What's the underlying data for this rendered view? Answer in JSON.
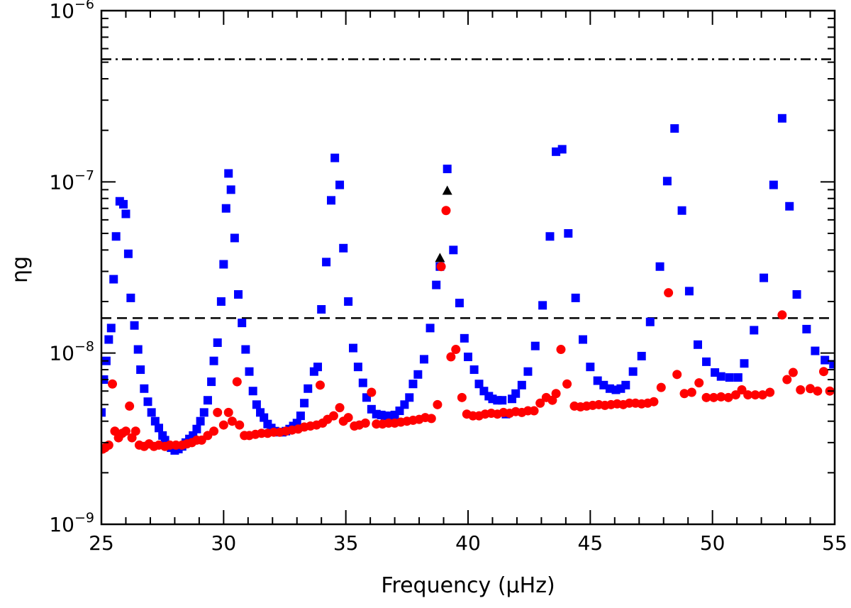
{
  "chart_data": {
    "type": "scatter",
    "title": "",
    "xlabel": "Frequency (μHz)",
    "ylabel": "ηg",
    "xlim": [
      25,
      55
    ],
    "ylim": [
      1e-09,
      1e-06
    ],
    "yscale": "log",
    "x_ticks": [
      {
        "value": 25,
        "label": "25"
      },
      {
        "value": 30,
        "label": "30"
      },
      {
        "value": 35,
        "label": "35"
      },
      {
        "value": 40,
        "label": "40"
      },
      {
        "value": 45,
        "label": "45"
      },
      {
        "value": 50,
        "label": "50"
      },
      {
        "value": 55,
        "label": "55"
      }
    ],
    "y_ticks": [
      {
        "value": 1e-09,
        "base": "10",
        "exp": "−9"
      },
      {
        "value": 1e-08,
        "base": "10",
        "exp": "−8"
      },
      {
        "value": 1e-07,
        "base": "10",
        "exp": "−7"
      },
      {
        "value": 1e-06,
        "base": "10",
        "exp": "−6"
      }
    ],
    "hlines": [
      {
        "name": "dash-dot-threshold",
        "y": 5.2e-07,
        "style": "dashdot",
        "color": "#000000"
      },
      {
        "name": "dashed-threshold",
        "y": 1.6e-08,
        "style": "dashed",
        "color": "#000000"
      }
    ],
    "series": [
      {
        "name": "blue-squares",
        "marker": "square",
        "color": "#0000ff",
        "points": [
          [
            25.0,
            4.5e-09
          ],
          [
            25.1,
            7e-09
          ],
          [
            25.2,
            9e-09
          ],
          [
            25.3,
            1.2e-08
          ],
          [
            25.4,
            1.4e-08
          ],
          [
            25.5,
            2.7e-08
          ],
          [
            25.6,
            4.8e-08
          ],
          [
            25.75,
            7.7e-08
          ],
          [
            25.9,
            7.4e-08
          ],
          [
            26.0,
            6.5e-08
          ],
          [
            26.1,
            3.8e-08
          ],
          [
            26.2,
            2.1e-08
          ],
          [
            26.35,
            1.45e-08
          ],
          [
            26.5,
            1.05e-08
          ],
          [
            26.6,
            8e-09
          ],
          [
            26.75,
            6.2e-09
          ],
          [
            26.9,
            5.2e-09
          ],
          [
            27.05,
            4.5e-09
          ],
          [
            27.2,
            4e-09
          ],
          [
            27.35,
            3.65e-09
          ],
          [
            27.5,
            3.3e-09
          ],
          [
            27.6,
            3.1e-09
          ],
          [
            27.7,
            2.9e-09
          ],
          [
            27.85,
            2.8e-09
          ],
          [
            28.0,
            2.7e-09
          ],
          [
            28.15,
            2.75e-09
          ],
          [
            28.3,
            2.85e-09
          ],
          [
            28.45,
            3e-09
          ],
          [
            28.6,
            3.15e-09
          ],
          [
            28.75,
            3.3e-09
          ],
          [
            28.9,
            3.6e-09
          ],
          [
            29.05,
            4e-09
          ],
          [
            29.2,
            4.5e-09
          ],
          [
            29.35,
            5.3e-09
          ],
          [
            29.5,
            6.8e-09
          ],
          [
            29.6,
            9e-09
          ],
          [
            29.75,
            1.15e-08
          ],
          [
            29.9,
            2e-08
          ],
          [
            30.0,
            3.3e-08
          ],
          [
            30.1,
            7e-08
          ],
          [
            30.2,
            1.12e-07
          ],
          [
            30.3,
            9e-08
          ],
          [
            30.45,
            4.7e-08
          ],
          [
            30.6,
            2.2e-08
          ],
          [
            30.75,
            1.5e-08
          ],
          [
            30.9,
            1.05e-08
          ],
          [
            31.05,
            7.8e-09
          ],
          [
            31.2,
            6e-09
          ],
          [
            31.35,
            5e-09
          ],
          [
            31.5,
            4.5e-09
          ],
          [
            31.65,
            4.2e-09
          ],
          [
            31.8,
            3.85e-09
          ],
          [
            31.95,
            3.65e-09
          ],
          [
            32.1,
            3.5e-09
          ],
          [
            32.25,
            3.45e-09
          ],
          [
            32.4,
            3.45e-09
          ],
          [
            32.55,
            3.5e-09
          ],
          [
            32.7,
            3.6e-09
          ],
          [
            32.85,
            3.75e-09
          ],
          [
            33.0,
            3.9e-09
          ],
          [
            33.15,
            4.3e-09
          ],
          [
            33.3,
            5.1e-09
          ],
          [
            33.45,
            6.2e-09
          ],
          [
            33.7,
            7.8e-09
          ],
          [
            33.85,
            8.3e-09
          ],
          [
            34.0,
            1.8e-08
          ],
          [
            34.2,
            3.4e-08
          ],
          [
            34.4,
            7.8e-08
          ],
          [
            34.55,
            1.38e-07
          ],
          [
            34.75,
            9.6e-08
          ],
          [
            34.9,
            4.1e-08
          ],
          [
            35.1,
            2e-08
          ],
          [
            35.3,
            1.07e-08
          ],
          [
            35.5,
            8.3e-09
          ],
          [
            35.7,
            6.7e-09
          ],
          [
            35.85,
            5.5e-09
          ],
          [
            36.05,
            4.7e-09
          ],
          [
            36.25,
            4.4e-09
          ],
          [
            36.45,
            4.35e-09
          ],
          [
            36.6,
            4.3e-09
          ],
          [
            36.8,
            4.3e-09
          ],
          [
            37.0,
            4.35e-09
          ],
          [
            37.2,
            4.6e-09
          ],
          [
            37.4,
            5e-09
          ],
          [
            37.6,
            5.5e-09
          ],
          [
            37.75,
            6.6e-09
          ],
          [
            37.95,
            7.5e-09
          ],
          [
            38.2,
            9.2e-09
          ],
          [
            38.45,
            1.4e-08
          ],
          [
            38.7,
            2.5e-08
          ],
          [
            38.85,
            3.2e-08
          ],
          [
            39.15,
            1.19e-07
          ],
          [
            39.4,
            4e-08
          ],
          [
            39.65,
            1.96e-08
          ],
          [
            39.85,
            1.22e-08
          ],
          [
            40.0,
            9.5e-09
          ],
          [
            40.25,
            8e-09
          ],
          [
            40.45,
            6.6e-09
          ],
          [
            40.65,
            6e-09
          ],
          [
            40.85,
            5.6e-09
          ],
          [
            41.0,
            5.4e-09
          ],
          [
            41.2,
            5.3e-09
          ],
          [
            41.4,
            5.3e-09
          ],
          [
            41.55,
            4.4e-09
          ],
          [
            41.8,
            5.4e-09
          ],
          [
            41.95,
            5.8e-09
          ],
          [
            42.2,
            6.5e-09
          ],
          [
            42.45,
            7.8e-09
          ],
          [
            42.75,
            1.1e-08
          ],
          [
            43.05,
            1.9e-08
          ],
          [
            43.35,
            4.8e-08
          ],
          [
            43.6,
            1.5e-07
          ],
          [
            43.85,
            1.55e-07
          ],
          [
            44.1,
            5e-08
          ],
          [
            44.4,
            2.1e-08
          ],
          [
            44.7,
            1.2e-08
          ],
          [
            45.0,
            8.3e-09
          ],
          [
            45.3,
            6.9e-09
          ],
          [
            45.55,
            6.5e-09
          ],
          [
            45.8,
            6.2e-09
          ],
          [
            46.05,
            6.1e-09
          ],
          [
            46.25,
            6.2e-09
          ],
          [
            46.45,
            6.5e-09
          ],
          [
            46.75,
            7.8e-09
          ],
          [
            47.1,
            9.6e-09
          ],
          [
            47.45,
            1.52e-08
          ],
          [
            47.85,
            3.2e-08
          ],
          [
            48.15,
            1.01e-07
          ],
          [
            48.45,
            2.05e-07
          ],
          [
            48.75,
            6.8e-08
          ],
          [
            49.05,
            2.3e-08
          ],
          [
            49.4,
            1.12e-08
          ],
          [
            49.75,
            8.9e-09
          ],
          [
            50.1,
            7.7e-09
          ],
          [
            50.35,
            7.3e-09
          ],
          [
            50.7,
            7.2e-09
          ],
          [
            51.05,
            7.2e-09
          ],
          [
            51.3,
            8.7e-09
          ],
          [
            51.7,
            1.36e-08
          ],
          [
            52.1,
            2.75e-08
          ],
          [
            52.5,
            9.6e-08
          ],
          [
            52.85,
            2.35e-07
          ],
          [
            53.15,
            7.2e-08
          ],
          [
            53.45,
            2.2e-08
          ],
          [
            53.85,
            1.38e-08
          ],
          [
            54.2,
            1.03e-08
          ],
          [
            54.6,
            9.1e-09
          ],
          [
            54.95,
            8.6e-09
          ]
        ]
      },
      {
        "name": "red-circles",
        "marker": "circle",
        "color": "#ff0000",
        "points": [
          [
            25.05,
            2.75e-09
          ],
          [
            25.15,
            2.8e-09
          ],
          [
            25.3,
            2.9e-09
          ],
          [
            25.45,
            6.6e-09
          ],
          [
            25.55,
            3.5e-09
          ],
          [
            25.7,
            3.2e-09
          ],
          [
            25.85,
            3.4e-09
          ],
          [
            26.0,
            3.5e-09
          ],
          [
            26.15,
            4.9e-09
          ],
          [
            26.25,
            3.2e-09
          ],
          [
            26.4,
            3.5e-09
          ],
          [
            26.55,
            2.9e-09
          ],
          [
            26.75,
            2.85e-09
          ],
          [
            26.95,
            2.95e-09
          ],
          [
            27.15,
            2.85e-09
          ],
          [
            27.35,
            2.9e-09
          ],
          [
            27.6,
            2.85e-09
          ],
          [
            27.8,
            2.9e-09
          ],
          [
            28.05,
            2.9e-09
          ],
          [
            28.3,
            2.9e-09
          ],
          [
            28.5,
            2.95e-09
          ],
          [
            28.7,
            3e-09
          ],
          [
            28.9,
            3.1e-09
          ],
          [
            29.1,
            3.1e-09
          ],
          [
            29.35,
            3.3e-09
          ],
          [
            29.6,
            3.5e-09
          ],
          [
            29.75,
            4.5e-09
          ],
          [
            30.0,
            3.8e-09
          ],
          [
            30.2,
            4.5e-09
          ],
          [
            30.35,
            4e-09
          ],
          [
            30.55,
            6.8e-09
          ],
          [
            30.65,
            3.8e-09
          ],
          [
            30.85,
            3.3e-09
          ],
          [
            31.05,
            3.3e-09
          ],
          [
            31.3,
            3.35e-09
          ],
          [
            31.55,
            3.4e-09
          ],
          [
            31.8,
            3.4e-09
          ],
          [
            32.05,
            3.45e-09
          ],
          [
            32.3,
            3.45e-09
          ],
          [
            32.55,
            3.5e-09
          ],
          [
            32.8,
            3.55e-09
          ],
          [
            33.05,
            3.6e-09
          ],
          [
            33.3,
            3.7e-09
          ],
          [
            33.55,
            3.75e-09
          ],
          [
            33.8,
            3.8e-09
          ],
          [
            33.95,
            6.5e-09
          ],
          [
            34.05,
            3.9e-09
          ],
          [
            34.25,
            4.1e-09
          ],
          [
            34.5,
            4.3e-09
          ],
          [
            34.75,
            4.8e-09
          ],
          [
            34.9,
            4e-09
          ],
          [
            35.1,
            4.2e-09
          ],
          [
            35.35,
            3.75e-09
          ],
          [
            35.55,
            3.8e-09
          ],
          [
            35.8,
            3.9e-09
          ],
          [
            36.05,
            5.9e-09
          ],
          [
            36.25,
            3.85e-09
          ],
          [
            36.5,
            3.85e-09
          ],
          [
            36.75,
            3.9e-09
          ],
          [
            37.0,
            3.9e-09
          ],
          [
            37.25,
            3.95e-09
          ],
          [
            37.5,
            4e-09
          ],
          [
            37.75,
            4.05e-09
          ],
          [
            38.0,
            4.1e-09
          ],
          [
            38.25,
            4.2e-09
          ],
          [
            38.5,
            4.15e-09
          ],
          [
            38.75,
            5e-09
          ],
          [
            38.9,
            3.2e-08
          ],
          [
            39.1,
            6.8e-08
          ],
          [
            39.3,
            9.5e-09
          ],
          [
            39.5,
            1.05e-08
          ],
          [
            39.75,
            5.5e-09
          ],
          [
            39.95,
            4.4e-09
          ],
          [
            40.2,
            4.3e-09
          ],
          [
            40.45,
            4.3e-09
          ],
          [
            40.7,
            4.4e-09
          ],
          [
            40.95,
            4.45e-09
          ],
          [
            41.2,
            4.4e-09
          ],
          [
            41.45,
            4.5e-09
          ],
          [
            41.7,
            4.45e-09
          ],
          [
            41.95,
            4.55e-09
          ],
          [
            42.2,
            4.5e-09
          ],
          [
            42.45,
            4.6e-09
          ],
          [
            42.7,
            4.6e-09
          ],
          [
            42.95,
            5.1e-09
          ],
          [
            43.2,
            5.5e-09
          ],
          [
            43.45,
            5.3e-09
          ],
          [
            43.6,
            5.8e-09
          ],
          [
            43.8,
            1.05e-08
          ],
          [
            44.05,
            6.6e-09
          ],
          [
            44.35,
            4.9e-09
          ],
          [
            44.6,
            4.85e-09
          ],
          [
            44.85,
            4.9e-09
          ],
          [
            45.1,
            4.95e-09
          ],
          [
            45.35,
            5e-09
          ],
          [
            45.6,
            4.95e-09
          ],
          [
            45.85,
            5e-09
          ],
          [
            46.1,
            5.05e-09
          ],
          [
            46.35,
            5e-09
          ],
          [
            46.6,
            5.1e-09
          ],
          [
            46.85,
            5.1e-09
          ],
          [
            47.1,
            5.05e-09
          ],
          [
            47.35,
            5.1e-09
          ],
          [
            47.6,
            5.2e-09
          ],
          [
            47.9,
            6.3e-09
          ],
          [
            48.2,
            2.25e-08
          ],
          [
            48.55,
            7.5e-09
          ],
          [
            48.85,
            5.8e-09
          ],
          [
            49.15,
            5.9e-09
          ],
          [
            49.45,
            6.7e-09
          ],
          [
            49.75,
            5.5e-09
          ],
          [
            50.05,
            5.5e-09
          ],
          [
            50.35,
            5.55e-09
          ],
          [
            50.65,
            5.5e-09
          ],
          [
            50.95,
            5.7e-09
          ],
          [
            51.2,
            6.1e-09
          ],
          [
            51.45,
            5.7e-09
          ],
          [
            51.75,
            5.7e-09
          ],
          [
            52.05,
            5.7e-09
          ],
          [
            52.35,
            5.9e-09
          ],
          [
            52.85,
            1.67e-08
          ],
          [
            53.05,
            7e-09
          ],
          [
            53.3,
            7.7e-09
          ],
          [
            53.6,
            6.1e-09
          ],
          [
            54.0,
            6.2e-09
          ],
          [
            54.3,
            6e-09
          ],
          [
            54.55,
            7.8e-09
          ],
          [
            54.8,
            6e-09
          ]
        ]
      },
      {
        "name": "black-triangles",
        "marker": "triangle",
        "color": "#000000",
        "points": [
          [
            38.85,
            3.6e-08
          ],
          [
            39.15,
            8.9e-08
          ]
        ]
      }
    ]
  }
}
